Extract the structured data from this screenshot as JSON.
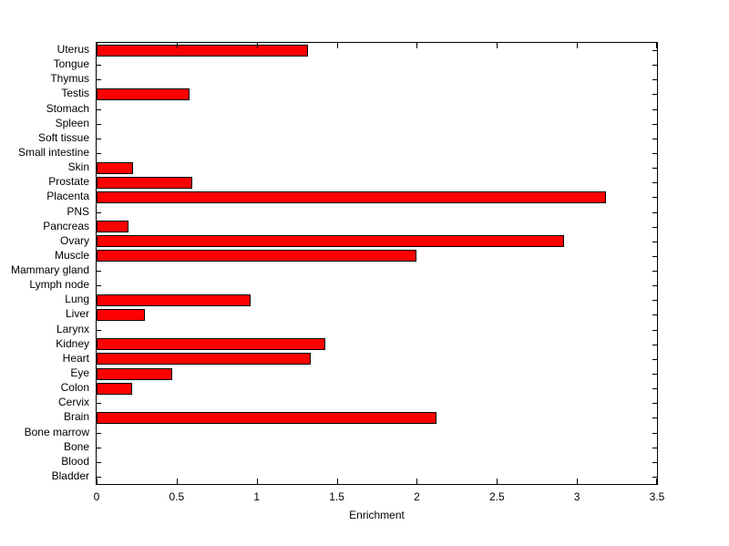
{
  "figure": {
    "background": "#ffffff",
    "axis_color": "#000000",
    "text_color": "#000000"
  },
  "chart_data": {
    "type": "bar",
    "orientation": "horizontal",
    "title": "",
    "xlabel": "Enrichment",
    "ylabel": "",
    "xlim": [
      0,
      3.5
    ],
    "grid": false,
    "legend": null,
    "bar_color": "#ff0000",
    "bar_edge_color": "#000000",
    "categories_top_to_bottom": [
      "Uterus",
      "Tongue",
      "Thymus",
      "Testis",
      "Stomach",
      "Spleen",
      "Soft tissue",
      "Small intestine",
      "Skin",
      "Prostate",
      "Placenta",
      "PNS",
      "Pancreas",
      "Ovary",
      "Muscle",
      "Mammary gland",
      "Lymph node",
      "Lung",
      "Liver",
      "Larynx",
      "Kidney",
      "Heart",
      "Eye",
      "Colon",
      "Cervix",
      "Brain",
      "Bone marrow",
      "Bone",
      "Blood",
      "Bladder"
    ],
    "values": [
      1.32,
      0,
      0,
      0.58,
      0,
      0,
      0,
      0,
      0.23,
      0.6,
      3.18,
      0,
      0.2,
      2.92,
      2.0,
      0,
      0,
      0.96,
      0.3,
      0,
      1.43,
      1.34,
      0.47,
      0.22,
      0,
      2.12,
      0,
      0,
      0,
      0
    ],
    "xticks": [
      0,
      0.5,
      1,
      1.5,
      2,
      2.5,
      3,
      3.5
    ],
    "xtick_labels": [
      "0",
      "0.5",
      "1",
      "1.5",
      "2",
      "2.5",
      "3",
      "3.5"
    ]
  }
}
